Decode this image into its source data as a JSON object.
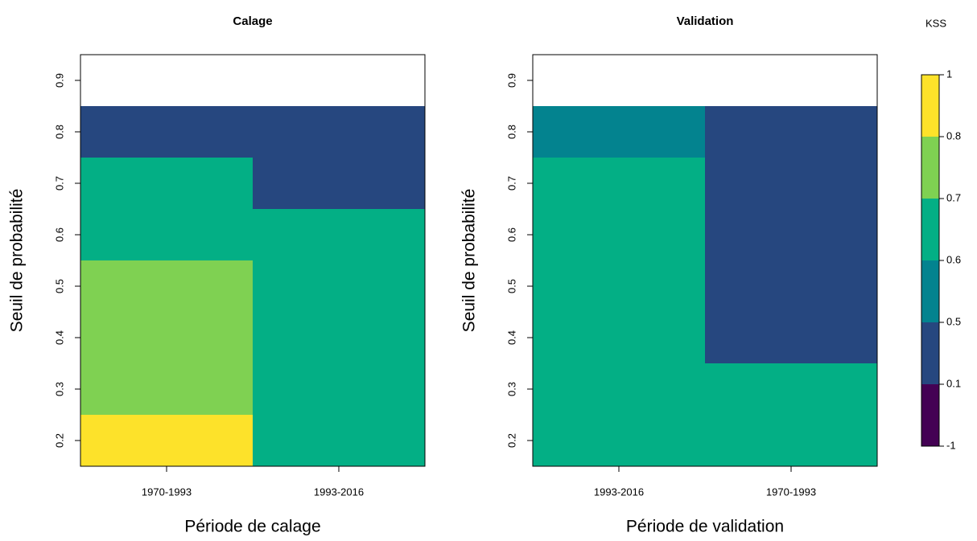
{
  "chart_data": [
    {
      "type": "heatmap",
      "title": "Calage",
      "xlabel": "Période de calage",
      "ylabel": "Seuil de probabilité",
      "categories": [
        "1970-1993",
        "1993-2016"
      ],
      "y": [
        0.2,
        0.3,
        0.4,
        0.5,
        0.6,
        0.7,
        0.8,
        0.9
      ],
      "values": [
        [
          0.85,
          0.75,
          0.75,
          0.75,
          0.65,
          0.65,
          0.3,
          null
        ],
        [
          0.65,
          0.65,
          0.65,
          0.65,
          0.65,
          0.3,
          0.3,
          null
        ]
      ],
      "ylim": [
        0.15,
        0.95
      ],
      "yticks": [
        0.2,
        0.3,
        0.4,
        0.5,
        0.6,
        0.7,
        0.8,
        0.9
      ]
    },
    {
      "type": "heatmap",
      "title": "Validation",
      "xlabel": "Période de validation",
      "ylabel": "Seuil de probabilité",
      "categories": [
        "1993-2016",
        "1970-1993"
      ],
      "y": [
        0.2,
        0.3,
        0.4,
        0.5,
        0.6,
        0.7,
        0.8,
        0.9
      ],
      "values": [
        [
          0.65,
          0.65,
          0.65,
          0.65,
          0.65,
          0.65,
          0.55,
          null
        ],
        [
          0.65,
          0.65,
          0.3,
          0.3,
          0.3,
          0.3,
          0.3,
          null
        ]
      ],
      "ylim": [
        0.15,
        0.95
      ],
      "yticks": [
        0.2,
        0.3,
        0.4,
        0.5,
        0.6,
        0.7,
        0.8,
        0.9
      ]
    },
    {
      "type": "colorbar",
      "title": "KSS",
      "breaks": [
        -1,
        0.1,
        0.5,
        0.6,
        0.7,
        0.8,
        1
      ],
      "colors": [
        "#440154",
        "#26477f",
        "#03838f",
        "#03af85",
        "#7fd152",
        "#fde22a"
      ]
    }
  ]
}
